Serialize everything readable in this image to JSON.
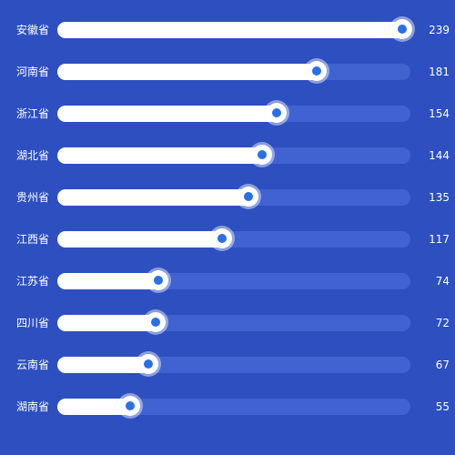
{
  "chart_data": {
    "type": "bar",
    "orientation": "horizontal",
    "categories": [
      "安徽省",
      "河南省",
      "浙江省",
      "湖北省",
      "贵州省",
      "江西省",
      "江苏省",
      "四川省",
      "云南省",
      "湖南省"
    ],
    "values": [
      239,
      181,
      154,
      144,
      135,
      117,
      74,
      72,
      67,
      55
    ],
    "xlim": [
      0,
      239
    ],
    "grid": false,
    "legend": "none"
  },
  "colors": {
    "background": "#2d4fbf",
    "track": "#4163d2",
    "fill": "#ffffff",
    "knob_dot": "#2a6fe6",
    "text": "#ffffff"
  }
}
